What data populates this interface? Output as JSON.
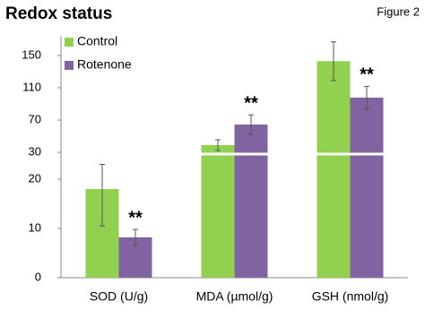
{
  "chart_data": {
    "type": "bar",
    "title": "Redox status",
    "figure_label": "Figure 2",
    "categories": [
      "SOD (U/g)",
      "MDA (µmol/g)",
      "GSH (nmol/g)"
    ],
    "series": [
      {
        "name": "Control",
        "color": "#92d050",
        "values": [
          18,
          38.9,
          143
        ],
        "errors": [
          7.5,
          6.7,
          24
        ]
      },
      {
        "name": "Rotenone",
        "color": "#8064a2",
        "values": [
          8.2,
          64.4,
          97.8
        ],
        "errors": [
          1.6,
          12,
          14
        ]
      }
    ],
    "annotations": [
      "**",
      "**",
      "**"
    ],
    "ylim": [
      0,
      170
    ],
    "yticks": [
      0,
      10,
      20,
      30,
      70,
      110,
      150
    ],
    "axis_break": 30,
    "grid": false
  }
}
